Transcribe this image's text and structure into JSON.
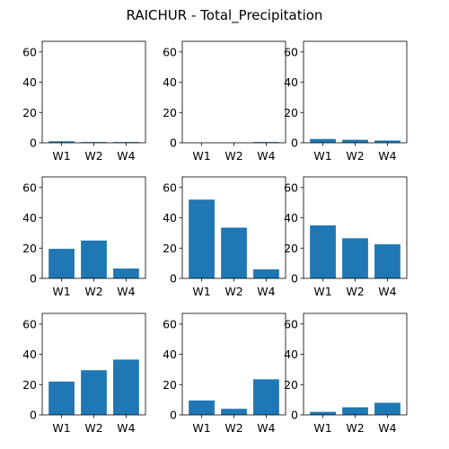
{
  "figure": {
    "title": "RAICHUR - Total_Precipitation"
  },
  "chart_data": {
    "type": "bar",
    "title": "RAICHUR - Total_Precipitation",
    "layout": "3x3 grid of bar subplots",
    "categories": [
      "W1",
      "W2",
      "W4"
    ],
    "ylim": [
      0,
      67
    ],
    "yticks": [
      0,
      20,
      40,
      60
    ],
    "bar_color": "#1f77b4",
    "grid": false,
    "subplots": [
      {
        "values": [
          1.0,
          0.5,
          0.5
        ]
      },
      {
        "values": [
          0.0,
          0.0,
          0.5
        ]
      },
      {
        "values": [
          2.5,
          2.0,
          1.5
        ]
      },
      {
        "values": [
          19.5,
          25.0,
          6.5
        ]
      },
      {
        "values": [
          52.0,
          33.5,
          6.0
        ]
      },
      {
        "values": [
          35.0,
          26.5,
          22.5
        ]
      },
      {
        "values": [
          22.0,
          29.5,
          36.5
        ]
      },
      {
        "values": [
          9.5,
          4.0,
          23.5
        ]
      },
      {
        "values": [
          2.0,
          5.0,
          8.0
        ]
      }
    ]
  }
}
